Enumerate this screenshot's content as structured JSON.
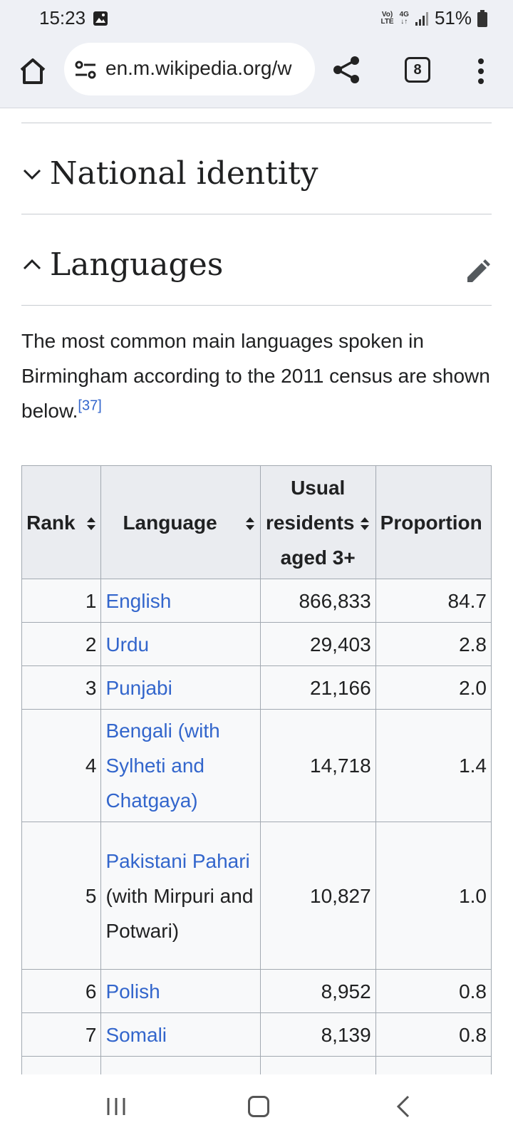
{
  "status": {
    "time": "15:23",
    "volte_top": "Vo)",
    "volte_bottom": "LTE",
    "network_top": "4G",
    "network_bottom": "↓↑",
    "battery": "51%"
  },
  "browser": {
    "url": "en.m.wikipedia.org/w",
    "tab_count": "8"
  },
  "sections": {
    "national_identity": "National identity",
    "languages": "Languages"
  },
  "intro": {
    "text": "The most common main languages spoken in Birmingham according to the 2011 census are shown below.",
    "ref": "[37]"
  },
  "table": {
    "headers": {
      "rank": "Rank",
      "language": "Language",
      "residents_line1": "Usual",
      "residents_line2": "residents",
      "residents_line3": "aged 3+",
      "proportion": "Proportion"
    },
    "rows": [
      {
        "rank": "1",
        "language": "English",
        "residents": "866,833",
        "proportion": "84.7"
      },
      {
        "rank": "2",
        "language": "Urdu",
        "residents": "29,403",
        "proportion": "2.8"
      },
      {
        "rank": "3",
        "language": "Punjabi",
        "residents": "21,166",
        "proportion": "2.0"
      },
      {
        "rank": "4",
        "language": "Bengali (with Sylheti and Chatgaya)",
        "residents": "14,718",
        "proportion": "1.4"
      },
      {
        "rank": "5",
        "language_link": "Pakistani Pahari",
        "language_rest": " (with Mirpuri and Potwari)",
        "residents": "10,827",
        "proportion": "1.0"
      },
      {
        "rank": "6",
        "language": "Polish",
        "residents": "8,952",
        "proportion": "0.8"
      },
      {
        "rank": "7",
        "language": "Somali",
        "residents": "8,139",
        "proportion": "0.8"
      }
    ]
  }
}
